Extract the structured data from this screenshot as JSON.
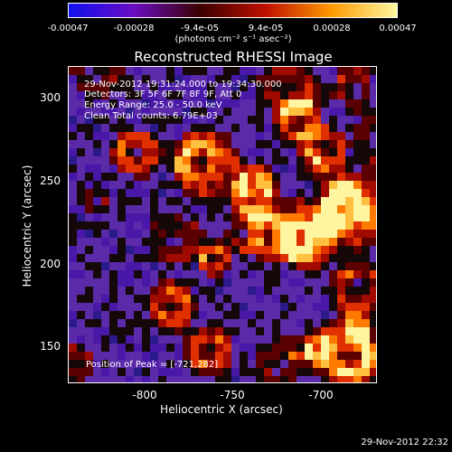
{
  "colorbar": {
    "ticks": [
      "-0.00047",
      "-0.00028",
      "-9.4e-05",
      "9.4e-05",
      "0.00028",
      "0.00047"
    ],
    "units": "(photons cm⁻² s⁻¹ asec⁻²)",
    "colors": [
      "#1010f0",
      "#6a0cc0",
      "#3a0000",
      "#c01000",
      "#ff9a00",
      "#fff8a0"
    ]
  },
  "plot": {
    "title": "Reconstructed RHESSI Image",
    "info_lines": [
      "29-Nov-2012 19:31:24.000 to 19:34:30.000",
      "Detectors: 3F 5F 6F 7F 8F 9F, Att 0",
      "Energy Range: 25.0 - 50.0 keV",
      "Clean     Total counts: 6.79E+03"
    ],
    "peak_label": "Position of Peak = [-721,282]",
    "xlabel": "Heliocentric X (arcsec)",
    "ylabel": "Heliocentric Y (arcsec)",
    "xticks": [
      "-800",
      "-750",
      "-700"
    ],
    "yticks": [
      "300",
      "250",
      "200",
      "150"
    ]
  },
  "footer": {
    "timestamp": "29-Nov-2012 22:32"
  }
}
